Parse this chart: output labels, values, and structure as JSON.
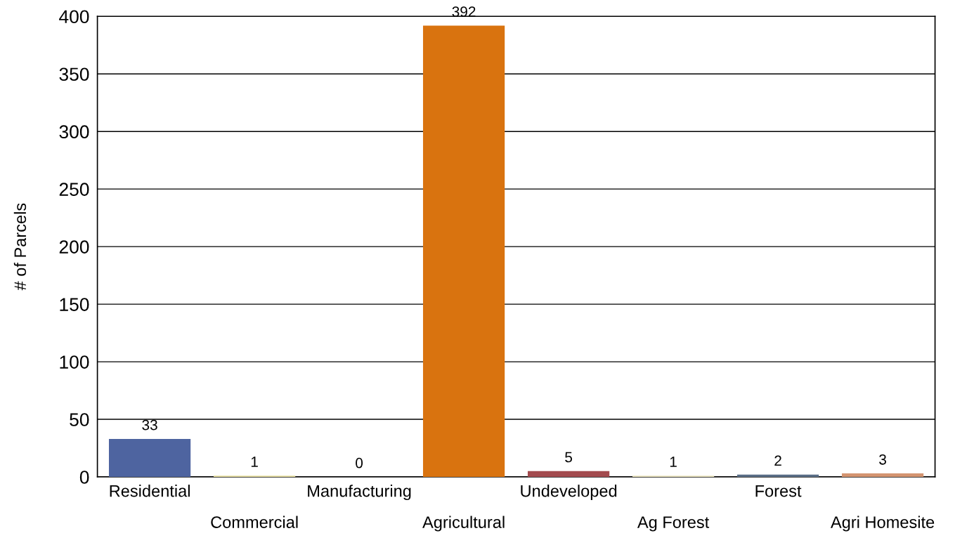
{
  "chart_data": {
    "type": "bar",
    "ylabel": "# of Parcels",
    "categories": [
      "Residential",
      "Commercial",
      "Manufacturing",
      "Agricultural",
      "Undeveloped",
      "Ag Forest",
      "Forest",
      "Agri Homesite"
    ],
    "values": [
      33,
      1,
      0,
      392,
      5,
      1,
      2,
      3
    ],
    "colors": [
      "#4e64a0",
      "#e8e0a0",
      "#808080",
      "#d9730f",
      "#a24a4e",
      "#ece6c0",
      "#5a6e86",
      "#d49470"
    ],
    "ylim": [
      0,
      400
    ],
    "yticks": [
      0,
      50,
      100,
      150,
      200,
      250,
      300,
      350,
      400
    ],
    "grid": "y",
    "data_labels": true
  }
}
